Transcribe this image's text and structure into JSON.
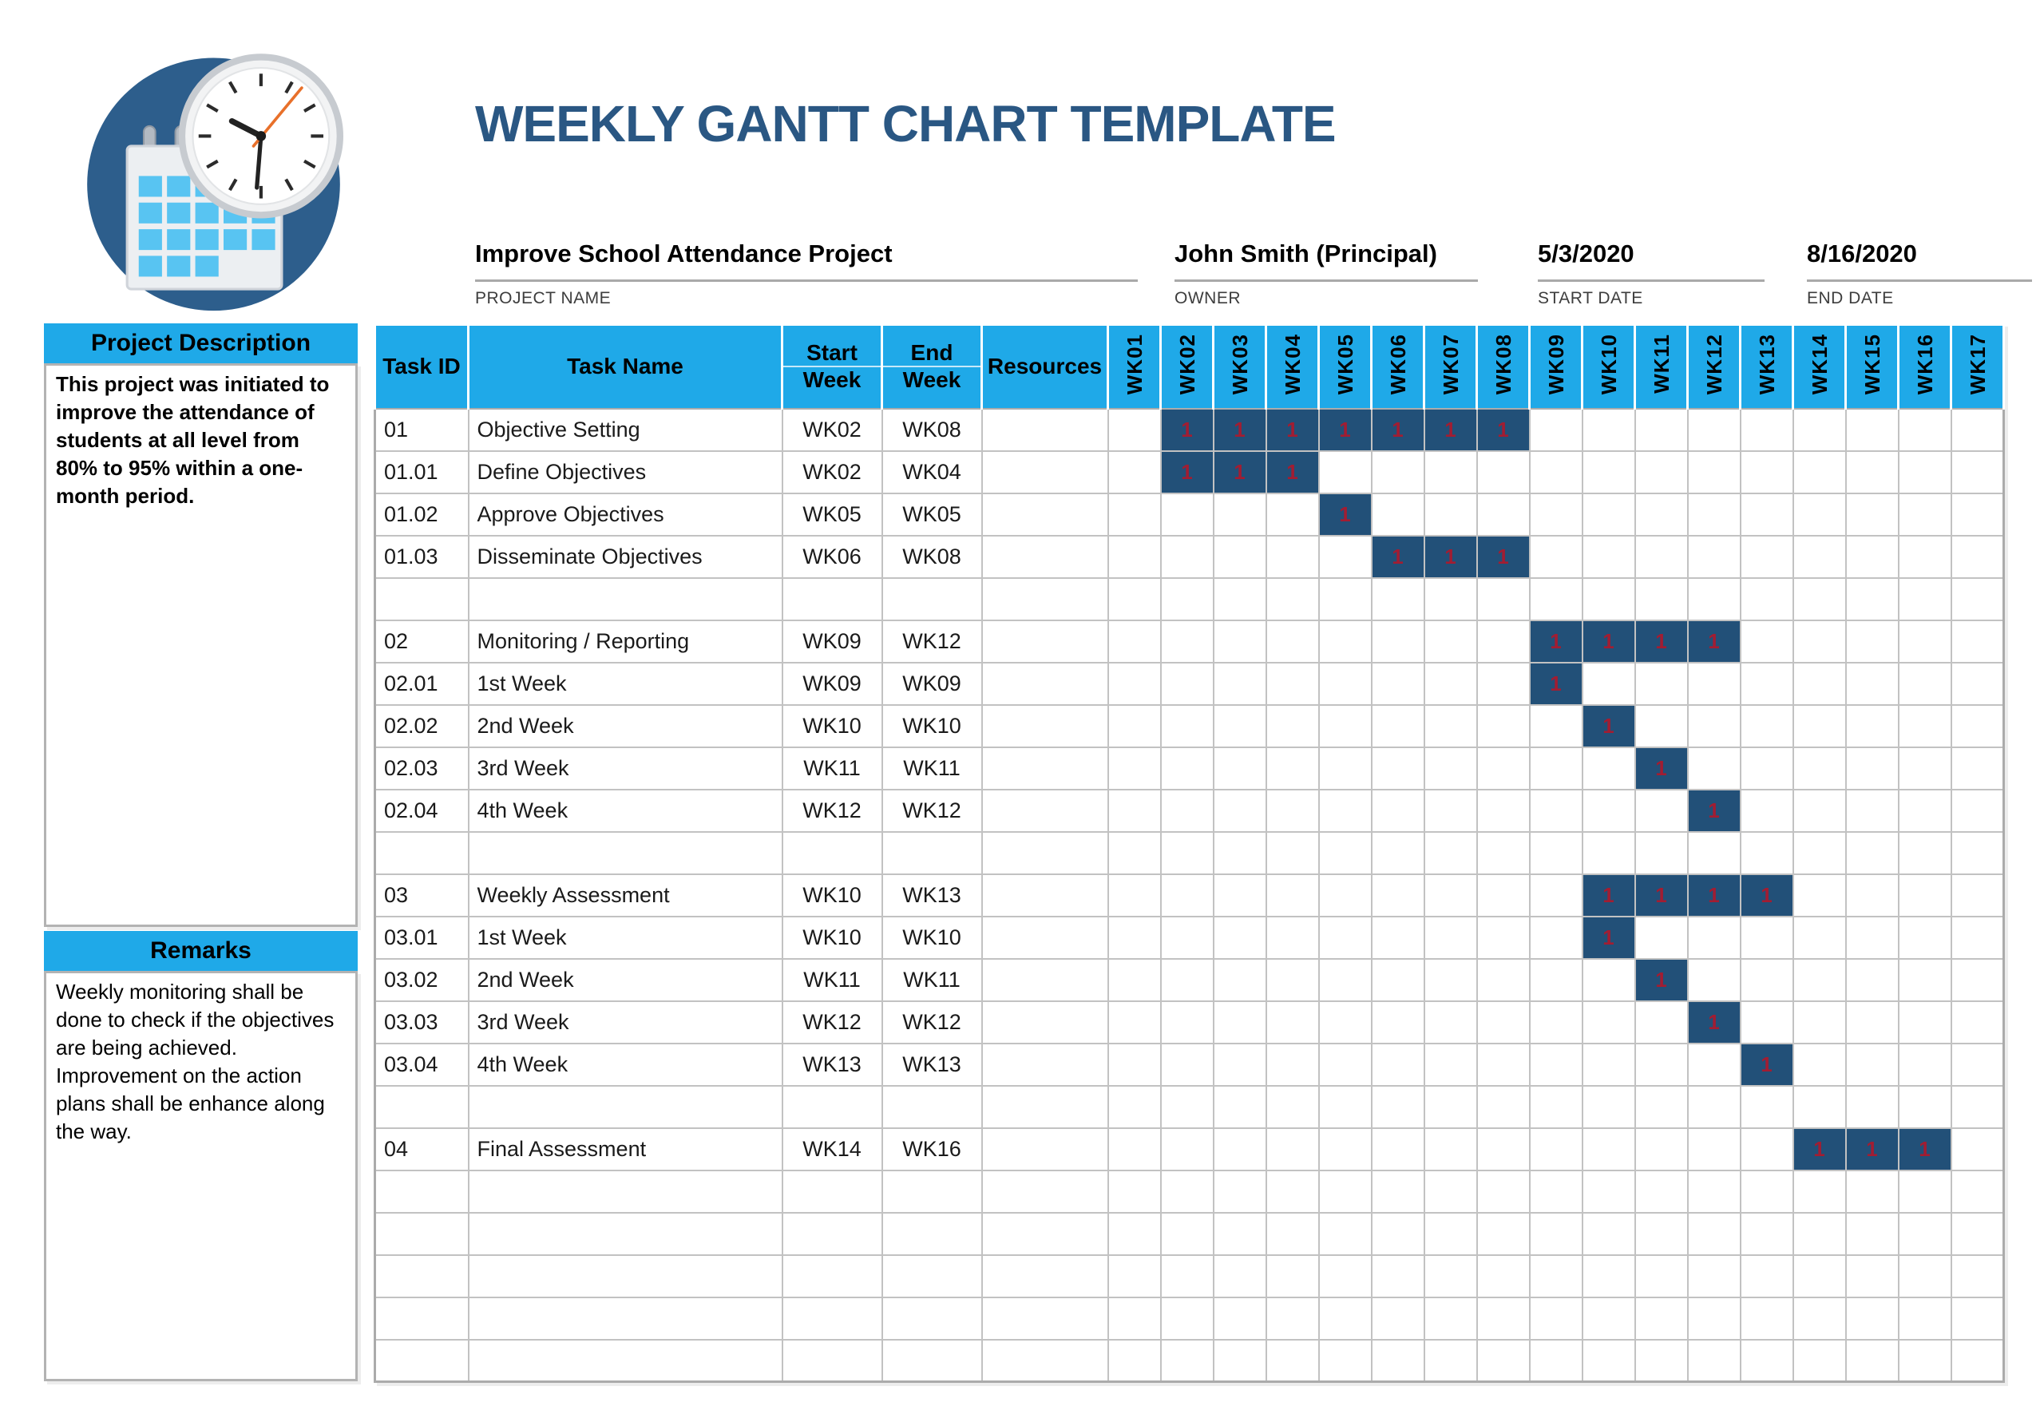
{
  "page_title": "WEEKLY GANTT CHART TEMPLATE",
  "project_info": {
    "name": {
      "value": "Improve School Attendance Project",
      "label": "PROJECT NAME"
    },
    "owner": {
      "value": "John Smith (Principal)",
      "label": "OWNER"
    },
    "start_date": {
      "value": "5/3/2020",
      "label": "START DATE"
    },
    "end_date": {
      "value": "8/16/2020",
      "label": "END DATE"
    }
  },
  "sidebar": {
    "description_header": "Project Description",
    "description_text": "This project was initiated to improve the attendance of students at all level from 80% to 95% within a one-month period.",
    "remarks_header": "Remarks",
    "remarks_lines": [
      "Weekly monitoring shall be done to check if the objectives are being achieved.",
      "Improvement on the action plans shall be enhance along the way."
    ]
  },
  "table": {
    "headers": {
      "task_id": "Task ID",
      "task_name": "Task Name",
      "start_top": "Start",
      "start_bottom": "Week",
      "end_top": "End",
      "end_bottom": "Week",
      "resources": "Resources"
    },
    "weeks": [
      "WK01",
      "WK02",
      "WK03",
      "WK04",
      "WK05",
      "WK06",
      "WK07",
      "WK08",
      "WK09",
      "WK10",
      "WK11",
      "WK12",
      "WK13",
      "WK14",
      "WK15",
      "WK16",
      "WK17"
    ],
    "bar_cell_value": "1",
    "rows": [
      {
        "id": "01",
        "name": "Objective Setting",
        "start": "WK02",
        "end": "WK08",
        "resources": "",
        "bar": [
          2,
          8
        ]
      },
      {
        "id": "01.01",
        "name": "Define Objectives",
        "start": "WK02",
        "end": "WK04",
        "resources": "",
        "bar": [
          2,
          4
        ]
      },
      {
        "id": "01.02",
        "name": "Approve Objectives",
        "start": "WK05",
        "end": "WK05",
        "resources": "",
        "bar": [
          5,
          5
        ]
      },
      {
        "id": "01.03",
        "name": "Disseminate Objectives",
        "start": "WK06",
        "end": "WK08",
        "resources": "",
        "bar": [
          6,
          8
        ]
      },
      {
        "id": "",
        "name": "",
        "start": "",
        "end": "",
        "resources": "",
        "bar": null
      },
      {
        "id": "02",
        "name": "Monitoring / Reporting",
        "start": "WK09",
        "end": "WK12",
        "resources": "",
        "bar": [
          9,
          12
        ]
      },
      {
        "id": "02.01",
        "name": "1st Week",
        "start": "WK09",
        "end": "WK09",
        "resources": "",
        "bar": [
          9,
          9
        ]
      },
      {
        "id": "02.02",
        "name": "2nd Week",
        "start": "WK10",
        "end": "WK10",
        "resources": "",
        "bar": [
          10,
          10
        ]
      },
      {
        "id": "02.03",
        "name": "3rd Week",
        "start": "WK11",
        "end": "WK11",
        "resources": "",
        "bar": [
          11,
          11
        ]
      },
      {
        "id": "02.04",
        "name": "4th Week",
        "start": "WK12",
        "end": "WK12",
        "resources": "",
        "bar": [
          12,
          12
        ]
      },
      {
        "id": "",
        "name": "",
        "start": "",
        "end": "",
        "resources": "",
        "bar": null
      },
      {
        "id": "03",
        "name": "Weekly Assessment",
        "start": "WK10",
        "end": "WK13",
        "resources": "",
        "bar": [
          10,
          13
        ]
      },
      {
        "id": "03.01",
        "name": "1st Week",
        "start": "WK10",
        "end": "WK10",
        "resources": "",
        "bar": [
          10,
          10
        ]
      },
      {
        "id": "03.02",
        "name": "2nd Week",
        "start": "WK11",
        "end": "WK11",
        "resources": "",
        "bar": [
          11,
          11
        ]
      },
      {
        "id": "03.03",
        "name": "3rd Week",
        "start": "WK12",
        "end": "WK12",
        "resources": "",
        "bar": [
          12,
          12
        ]
      },
      {
        "id": "03.04",
        "name": "4th Week",
        "start": "WK13",
        "end": "WK13",
        "resources": "",
        "bar": [
          13,
          13
        ]
      },
      {
        "id": "",
        "name": "",
        "start": "",
        "end": "",
        "resources": "",
        "bar": null
      },
      {
        "id": "04",
        "name": "Final Assessment",
        "start": "WK14",
        "end": "WK16",
        "resources": "",
        "bar": [
          14,
          16
        ]
      },
      {
        "id": "",
        "name": "",
        "start": "",
        "end": "",
        "resources": "",
        "bar": null
      },
      {
        "id": "",
        "name": "",
        "start": "",
        "end": "",
        "resources": "",
        "bar": null
      },
      {
        "id": "",
        "name": "",
        "start": "",
        "end": "",
        "resources": "",
        "bar": null
      },
      {
        "id": "",
        "name": "",
        "start": "",
        "end": "",
        "resources": "",
        "bar": null
      },
      {
        "id": "",
        "name": "",
        "start": "",
        "end": "",
        "resources": "",
        "bar": null
      }
    ]
  },
  "colors": {
    "header_cyan": "#1FA9E8",
    "bar_navy": "#225078",
    "bar_value_red": "#A21D32",
    "title_navy": "#2A5783",
    "gridline_gray": "#C2C2C2",
    "logo_circle_blue": "#2D5E8C",
    "logo_square_blue": "#58C4F2"
  },
  "chart_data": {
    "type": "table",
    "subtype": "gantt",
    "title": "WEEKLY GANTT CHART TEMPLATE",
    "x_categories": [
      "WK01",
      "WK02",
      "WK03",
      "WK04",
      "WK05",
      "WK06",
      "WK07",
      "WK08",
      "WK09",
      "WK10",
      "WK11",
      "WK12",
      "WK13",
      "WK14",
      "WK15",
      "WK16",
      "WK17"
    ],
    "cell_value_when_active": 1,
    "legend_position": "none",
    "grid": true,
    "tasks": [
      {
        "task_id": "01",
        "task_name": "Objective Setting",
        "start_week": "WK02",
        "end_week": "WK08"
      },
      {
        "task_id": "01.01",
        "task_name": "Define Objectives",
        "start_week": "WK02",
        "end_week": "WK04"
      },
      {
        "task_id": "01.02",
        "task_name": "Approve Objectives",
        "start_week": "WK05",
        "end_week": "WK05"
      },
      {
        "task_id": "01.03",
        "task_name": "Disseminate Objectives",
        "start_week": "WK06",
        "end_week": "WK08"
      },
      {
        "task_id": "02",
        "task_name": "Monitoring / Reporting",
        "start_week": "WK09",
        "end_week": "WK12"
      },
      {
        "task_id": "02.01",
        "task_name": "1st Week",
        "start_week": "WK09",
        "end_week": "WK09"
      },
      {
        "task_id": "02.02",
        "task_name": "2nd Week",
        "start_week": "WK10",
        "end_week": "WK10"
      },
      {
        "task_id": "02.03",
        "task_name": "3rd Week",
        "start_week": "WK11",
        "end_week": "WK11"
      },
      {
        "task_id": "02.04",
        "task_name": "4th Week",
        "start_week": "WK12",
        "end_week": "WK12"
      },
      {
        "task_id": "03",
        "task_name": "Weekly Assessment",
        "start_week": "WK10",
        "end_week": "WK13"
      },
      {
        "task_id": "03.01",
        "task_name": "1st Week",
        "start_week": "WK10",
        "end_week": "WK10"
      },
      {
        "task_id": "03.02",
        "task_name": "2nd Week",
        "start_week": "WK11",
        "end_week": "WK11"
      },
      {
        "task_id": "03.03",
        "task_name": "3rd Week",
        "start_week": "WK12",
        "end_week": "WK12"
      },
      {
        "task_id": "03.04",
        "task_name": "4th Week",
        "start_week": "WK13",
        "end_week": "WK13"
      },
      {
        "task_id": "04",
        "task_name": "Final Assessment",
        "start_week": "WK14",
        "end_week": "WK16"
      }
    ]
  }
}
